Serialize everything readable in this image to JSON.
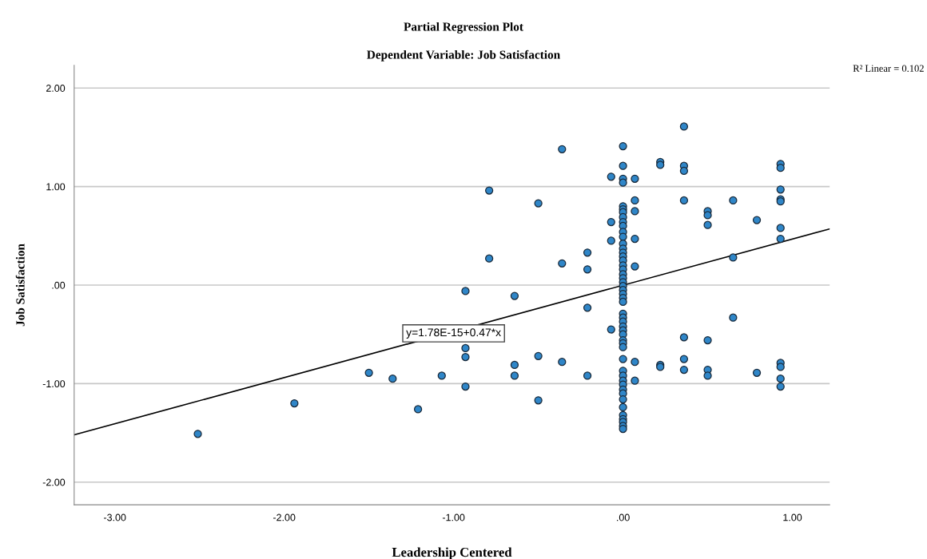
{
  "chart_data": {
    "type": "scatter",
    "title": "Partial Regression Plot",
    "subtitle": "Dependent Variable: Job Satisfaction",
    "xlabel": "Leadership Centered",
    "ylabel": "Job Satisfaction",
    "xlim": [
      -3.24,
      1.22
    ],
    "ylim": [
      -2.23,
      2.23
    ],
    "xticks": [
      {
        "value": -3,
        "label": "-3.00"
      },
      {
        "value": -2,
        "label": "-2.00"
      },
      {
        "value": -1,
        "label": "-1.00"
      },
      {
        "value": 0,
        "label": ".00"
      },
      {
        "value": 1,
        "label": "1.00"
      }
    ],
    "yticks": [
      {
        "value": -2,
        "label": "-2.00"
      },
      {
        "value": -1,
        "label": "-1.00"
      },
      {
        "value": 0,
        "label": ".00"
      },
      {
        "value": 1,
        "label": "1.00"
      },
      {
        "value": 2,
        "label": "2.00"
      }
    ],
    "grid": "y",
    "marker": "circle",
    "legend": false,
    "series": [
      {
        "color": "#2f86c8",
        "x": [
          -0.36,
          0,
          0,
          0.22,
          0.22,
          -0.07,
          0,
          0,
          0.07,
          -0.79,
          -0.5,
          0.07,
          0.07,
          -0.07,
          -0.07,
          0.07,
          0.07,
          -0.79,
          -0.36,
          -0.21,
          -0.21,
          -0.93,
          -0.64,
          -0.21,
          -0.07,
          -0.93,
          -0.93,
          -0.5,
          -0.36,
          -0.64,
          -0.64,
          0.07,
          0.22,
          0.22,
          -1.5,
          -1.36,
          -1.07,
          -0.21,
          0.07,
          -0.93,
          -0.5,
          -1.21,
          -2.51,
          -1.94,
          0,
          0,
          0,
          0,
          0,
          0,
          0,
          0,
          0,
          0,
          0,
          0,
          0,
          0,
          0,
          0,
          0,
          0,
          0,
          0,
          0,
          0,
          0,
          0,
          0,
          0,
          0,
          0,
          0,
          0,
          0,
          0,
          0,
          0,
          0,
          0,
          0,
          0,
          0,
          0,
          0,
          0,
          0,
          0,
          0,
          0,
          0.36,
          0.36,
          0.36,
          0.93,
          0.93,
          0.93,
          0.93,
          0.93,
          0.36,
          0.65,
          0.5,
          0.5,
          0.5,
          0.79,
          0.93,
          0.93,
          0.65,
          0.65,
          0.36,
          0.5,
          0.36,
          0.36,
          0.5,
          0.5,
          0.79,
          0.93,
          0.93,
          0.93,
          0.93
        ],
        "values": [
          1.38,
          1.41,
          1.21,
          1.25,
          1.22,
          1.1,
          1.08,
          1.04,
          1.08,
          0.96,
          0.83,
          0.86,
          0.75,
          0.64,
          0.45,
          0.47,
          0.19,
          0.27,
          0.22,
          0.33,
          0.16,
          -0.06,
          -0.11,
          -0.23,
          -0.45,
          -0.64,
          -0.73,
          -0.72,
          -0.78,
          -0.81,
          -0.92,
          -0.78,
          -0.81,
          -0.83,
          -0.89,
          -0.95,
          -0.92,
          -0.92,
          -0.97,
          -1.03,
          -1.17,
          -1.26,
          -1.51,
          -1.2,
          0.8,
          0.77,
          0.74,
          0.69,
          0.64,
          0.6,
          0.54,
          0.49,
          0.42,
          0.37,
          0.33,
          0.29,
          0.25,
          0.2,
          0.16,
          0.11,
          0.07,
          0.03,
          -0.01,
          -0.05,
          -0.09,
          -0.13,
          -0.17,
          -0.29,
          -0.33,
          -0.37,
          -0.42,
          -0.46,
          -0.5,
          -0.56,
          -0.59,
          -0.63,
          -0.75,
          -0.87,
          -0.92,
          -0.97,
          -1.01,
          -1.06,
          -1.1,
          -1.16,
          -1.24,
          -1.32,
          -1.36,
          -1.39,
          -1.43,
          -1.46,
          1.61,
          1.21,
          1.16,
          1.23,
          1.19,
          0.97,
          0.87,
          0.85,
          0.86,
          0.86,
          0.75,
          0.71,
          0.61,
          0.66,
          0.58,
          0.47,
          0.28,
          -0.33,
          -0.53,
          -0.56,
          -0.75,
          -0.86,
          -0.86,
          -0.92,
          -0.89,
          -0.79,
          -0.83,
          -0.95,
          -1.03
        ]
      },
      {
        "type": "line",
        "color": "#000000",
        "x": [
          -3.24,
          1.22
        ],
        "values": [
          -1.52,
          0.57
        ],
        "marker": "none",
        "line_style": "solid"
      }
    ],
    "annotations": [
      {
        "text": "y=1.78E-15+0.47*x",
        "x": -1.0,
        "y": -0.49
      },
      "R² Linear = 0.102"
    ]
  }
}
